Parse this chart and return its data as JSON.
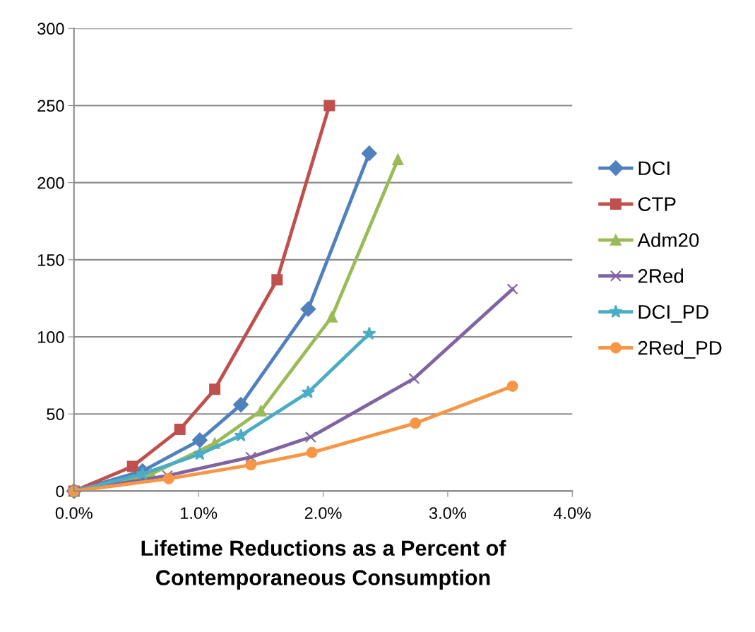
{
  "chart_data": {
    "type": "line",
    "xlabel": "Lifetime Reductions as a Percent of\nContemporaneous Consumption",
    "xlim": [
      0,
      4
    ],
    "xticks": [
      {
        "value": 0,
        "label": "0.0%"
      },
      {
        "value": 1,
        "label": "1.0%"
      },
      {
        "value": 2,
        "label": "2.0%"
      },
      {
        "value": 3,
        "label": "3.0%"
      },
      {
        "value": 4,
        "label": "4.0%"
      }
    ],
    "ylim": [
      0,
      300
    ],
    "yticks": [
      0,
      50,
      100,
      150,
      200,
      250,
      300
    ],
    "grid": "y",
    "legend": "right",
    "line_style": "solid",
    "series": [
      {
        "name": "DCI",
        "color": "#4f81bd",
        "marker": "diamond",
        "x": [
          0,
          0.55,
          1.01,
          1.34,
          1.88,
          2.37
        ],
        "values": [
          0,
          13,
          33,
          56,
          118,
          219
        ]
      },
      {
        "name": "CTP",
        "color": "#c0504d",
        "marker": "square",
        "x": [
          0,
          0.47,
          0.85,
          1.13,
          1.63,
          2.05
        ],
        "values": [
          0,
          16,
          40,
          66,
          137,
          250
        ]
      },
      {
        "name": "Adm20",
        "color": "#9bbb59",
        "marker": "triangle",
        "x": [
          0,
          0.62,
          1.13,
          1.5,
          2.07,
          2.6
        ],
        "values": [
          0,
          11,
          31,
          52,
          113,
          215
        ]
      },
      {
        "name": "2Red",
        "color": "#8064a2",
        "marker": "cross",
        "x": [
          0,
          0.75,
          1.42,
          1.9,
          2.73,
          3.52
        ],
        "values": [
          0,
          10,
          22,
          35,
          73,
          131
        ]
      },
      {
        "name": "DCI_PD",
        "color": "#4bacc6",
        "marker": "star",
        "x": [
          0,
          0.55,
          1.01,
          1.34,
          1.88,
          2.37
        ],
        "values": [
          0,
          11,
          24,
          36,
          64,
          102
        ]
      },
      {
        "name": "2Red_PD",
        "color": "#f79646",
        "marker": "circle",
        "x": [
          0,
          0.76,
          1.42,
          1.91,
          2.74,
          3.52
        ],
        "values": [
          0,
          8,
          17,
          25,
          44,
          68
        ]
      }
    ]
  }
}
